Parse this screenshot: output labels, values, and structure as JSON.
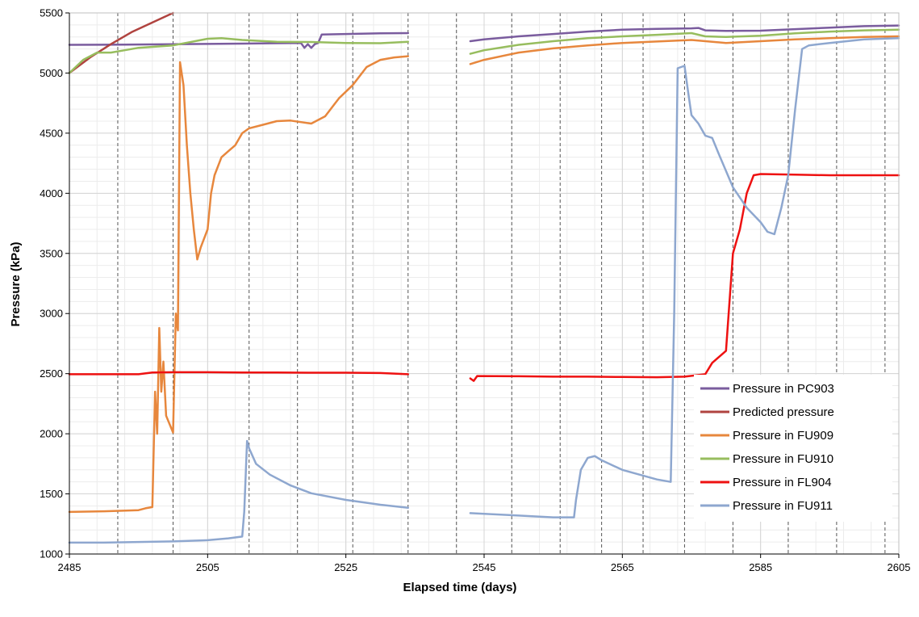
{
  "chart_data": {
    "type": "line",
    "title": "",
    "xlabel": "Elapsed time (days)",
    "ylabel": "Pressure (kPa)",
    "xlim": [
      2485,
      2605
    ],
    "ylim": [
      1000,
      5500
    ],
    "x_ticks": [
      2485,
      2505,
      2525,
      2545,
      2565,
      2585,
      2605
    ],
    "y_ticks": [
      1000,
      1500,
      2000,
      2500,
      3000,
      3500,
      4000,
      4500,
      5000,
      5500
    ],
    "grid": "minor gridlines on",
    "event_lines_x": [
      2492,
      2500,
      2511,
      2518,
      2526,
      2534,
      2541,
      2549,
      2556,
      2562,
      2568,
      2574,
      2581,
      2589,
      2596,
      2603
    ],
    "legend_position": "bottom-right",
    "series": [
      {
        "name": "Pressure in PC903",
        "color": "#7a5c9e",
        "segments": [
          [
            [
              2485,
              5235
            ],
            [
              2493,
              5237
            ],
            [
              2500,
              5240
            ],
            [
              2505,
              5242
            ],
            [
              2510,
              5245
            ],
            [
              2515,
              5248
            ],
            [
              2518.5,
              5250
            ],
            [
              2519,
              5210
            ],
            [
              2519.5,
              5240
            ],
            [
              2520,
              5210
            ],
            [
              2520.5,
              5240
            ],
            [
              2521,
              5250
            ],
            [
              2521.5,
              5320
            ],
            [
              2525,
              5325
            ],
            [
              2530,
              5330
            ],
            [
              2534,
              5332
            ]
          ],
          [
            [
              2543,
              5265
            ],
            [
              2545,
              5280
            ],
            [
              2550,
              5305
            ],
            [
              2555,
              5325
            ],
            [
              2560,
              5345
            ],
            [
              2565,
              5360
            ],
            [
              2570,
              5368
            ],
            [
              2575,
              5372
            ],
            [
              2576,
              5375
            ],
            [
              2577,
              5355
            ],
            [
              2580,
              5350
            ],
            [
              2585,
              5352
            ],
            [
              2590,
              5365
            ],
            [
              2595,
              5378
            ],
            [
              2600,
              5390
            ],
            [
              2605,
              5395
            ]
          ]
        ]
      },
      {
        "name": "Predicted pressure",
        "color": "#b0433f",
        "segments": [
          [
            [
              2485,
              5000
            ],
            [
              2488,
              5130
            ],
            [
              2491,
              5240
            ],
            [
              2494,
              5340
            ],
            [
              2497,
              5420
            ],
            [
              2500,
              5500
            ]
          ]
        ]
      },
      {
        "name": "Pressure in FU909",
        "color": "#e7873d",
        "segments": [
          [
            [
              2485,
              1350
            ],
            [
              2490,
              1355
            ],
            [
              2495,
              1365
            ],
            [
              2496,
              1380
            ],
            [
              2497,
              1390
            ],
            [
              2497.4,
              2350
            ],
            [
              2497.7,
              2000
            ],
            [
              2498,
              2880
            ],
            [
              2498.3,
              2350
            ],
            [
              2498.6,
              2600
            ],
            [
              2499,
              2150
            ],
            [
              2500,
              2010
            ],
            [
              2500.4,
              3000
            ],
            [
              2500.7,
              2860
            ],
            [
              2501,
              5090
            ],
            [
              2501.5,
              4900
            ],
            [
              2502,
              4400
            ],
            [
              2502.5,
              4000
            ],
            [
              2503,
              3700
            ],
            [
              2503.5,
              3450
            ],
            [
              2504,
              3550
            ],
            [
              2505,
              3700
            ],
            [
              2505.5,
              4000
            ],
            [
              2506,
              4150
            ],
            [
              2507,
              4300
            ],
            [
              2508,
              4350
            ],
            [
              2509,
              4400
            ],
            [
              2510,
              4500
            ],
            [
              2511,
              4540
            ],
            [
              2513,
              4570
            ],
            [
              2515,
              4600
            ],
            [
              2517,
              4605
            ],
            [
              2520,
              4580
            ],
            [
              2522,
              4640
            ],
            [
              2524,
              4790
            ],
            [
              2526,
              4900
            ],
            [
              2528,
              5050
            ],
            [
              2530,
              5110
            ],
            [
              2532,
              5130
            ],
            [
              2534,
              5140
            ]
          ],
          [
            [
              2543,
              5075
            ],
            [
              2545,
              5110
            ],
            [
              2550,
              5170
            ],
            [
              2555,
              5205
            ],
            [
              2560,
              5230
            ],
            [
              2565,
              5250
            ],
            [
              2570,
              5262
            ],
            [
              2575,
              5275
            ],
            [
              2580,
              5250
            ],
            [
              2585,
              5265
            ],
            [
              2590,
              5280
            ],
            [
              2595,
              5290
            ],
            [
              2600,
              5300
            ],
            [
              2605,
              5305
            ]
          ]
        ]
      },
      {
        "name": "Pressure in FU910",
        "color": "#97bd5e",
        "segments": [
          [
            [
              2485,
              5000
            ],
            [
              2487,
              5110
            ],
            [
              2489,
              5170
            ],
            [
              2491,
              5170
            ],
            [
              2493,
              5190
            ],
            [
              2495,
              5210
            ],
            [
              2500,
              5230
            ],
            [
              2505,
              5285
            ],
            [
              2507,
              5290
            ],
            [
              2510,
              5275
            ],
            [
              2515,
              5260
            ],
            [
              2520,
              5258
            ],
            [
              2525,
              5250
            ],
            [
              2530,
              5248
            ],
            [
              2534,
              5260
            ]
          ],
          [
            [
              2543,
              5160
            ],
            [
              2545,
              5190
            ],
            [
              2550,
              5235
            ],
            [
              2555,
              5265
            ],
            [
              2560,
              5290
            ],
            [
              2565,
              5305
            ],
            [
              2570,
              5318
            ],
            [
              2575,
              5332
            ],
            [
              2577,
              5305
            ],
            [
              2580,
              5300
            ],
            [
              2585,
              5310
            ],
            [
              2590,
              5330
            ],
            [
              2595,
              5345
            ],
            [
              2600,
              5355
            ],
            [
              2605,
              5360
            ]
          ]
        ]
      },
      {
        "name": "Pressure in FL904",
        "color": "#ee1111",
        "segments": [
          [
            [
              2485,
              2495
            ],
            [
              2490,
              2495
            ],
            [
              2495,
              2495
            ],
            [
              2497,
              2510
            ],
            [
              2500,
              2512
            ],
            [
              2505,
              2512
            ],
            [
              2510,
              2510
            ],
            [
              2515,
              2510
            ],
            [
              2520,
              2508
            ],
            [
              2525,
              2508
            ],
            [
              2530,
              2505
            ],
            [
              2534,
              2495
            ]
          ],
          [
            [
              2543,
              2460
            ],
            [
              2543.5,
              2440
            ],
            [
              2544,
              2480
            ],
            [
              2550,
              2478
            ],
            [
              2555,
              2475
            ],
            [
              2560,
              2475
            ],
            [
              2565,
              2472
            ],
            [
              2570,
              2470
            ],
            [
              2574,
              2475
            ],
            [
              2577,
              2495
            ],
            [
              2578,
              2590
            ],
            [
              2579,
              2640
            ],
            [
              2580,
              2690
            ],
            [
              2581,
              3500
            ],
            [
              2582,
              3700
            ],
            [
              2583,
              4000
            ],
            [
              2584,
              4150
            ],
            [
              2585,
              4160
            ],
            [
              2590,
              4155
            ],
            [
              2595,
              4150
            ],
            [
              2600,
              4150
            ],
            [
              2605,
              4150
            ]
          ]
        ]
      },
      {
        "name": "Pressure in FU911",
        "color": "#8ea7cf",
        "segments": [
          [
            [
              2485,
              1095
            ],
            [
              2490,
              1095
            ],
            [
              2495,
              1100
            ],
            [
              2500,
              1105
            ],
            [
              2505,
              1115
            ],
            [
              2508,
              1130
            ],
            [
              2510,
              1145
            ],
            [
              2510.3,
              1350
            ],
            [
              2510.7,
              1940
            ],
            [
              2511,
              1880
            ],
            [
              2512,
              1750
            ],
            [
              2514,
              1660
            ],
            [
              2517,
              1570
            ],
            [
              2520,
              1505
            ],
            [
              2525,
              1450
            ],
            [
              2530,
              1410
            ],
            [
              2534,
              1385
            ]
          ],
          [
            [
              2543,
              1340
            ],
            [
              2550,
              1320
            ],
            [
              2555,
              1305
            ],
            [
              2558,
              1305
            ],
            [
              2558.3,
              1450
            ],
            [
              2559,
              1700
            ],
            [
              2560,
              1800
            ],
            [
              2561,
              1815
            ],
            [
              2562,
              1780
            ],
            [
              2565,
              1700
            ],
            [
              2570,
              1620
            ],
            [
              2572,
              1600
            ],
            [
              2572.5,
              3000
            ],
            [
              2573,
              5040
            ],
            [
              2574,
              5060
            ],
            [
              2574.5,
              4850
            ],
            [
              2575,
              4650
            ],
            [
              2576,
              4580
            ],
            [
              2577,
              4480
            ],
            [
              2578,
              4460
            ],
            [
              2579,
              4320
            ],
            [
              2581,
              4050
            ],
            [
              2583,
              3880
            ],
            [
              2585,
              3760
            ],
            [
              2586,
              3680
            ],
            [
              2587,
              3660
            ],
            [
              2588,
              3880
            ],
            [
              2589,
              4150
            ],
            [
              2590,
              4700
            ],
            [
              2591,
              5200
            ],
            [
              2592,
              5230
            ],
            [
              2595,
              5250
            ],
            [
              2600,
              5280
            ],
            [
              2605,
              5290
            ]
          ]
        ]
      }
    ]
  }
}
